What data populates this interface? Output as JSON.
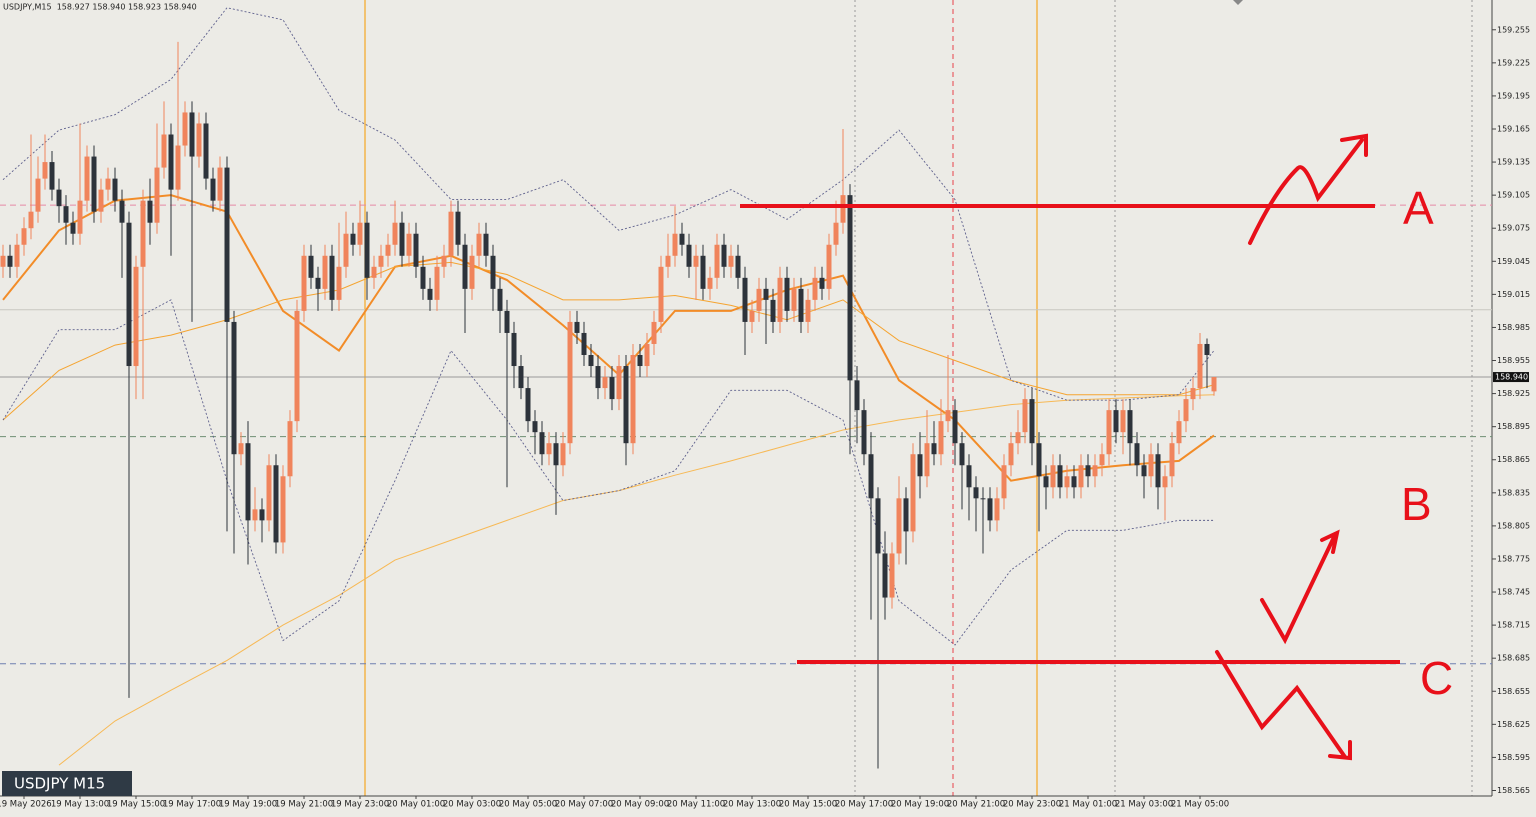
{
  "chart_data": {
    "type": "candlestick",
    "title": "USDJPY,M15  158.927 158.940 158.923 158.940",
    "watermark": "USDJPY M15",
    "categories": [
      null,
      null,
      null,
      "19 May 2026",
      null,
      null,
      null,
      null,
      null,
      null,
      null,
      "19 May 13:00",
      null,
      null,
      null,
      null,
      null,
      null,
      null,
      "19 May 15:00",
      null,
      null,
      null,
      null,
      null,
      null,
      null,
      "19 May 17:00",
      null,
      null,
      null,
      null,
      null,
      null,
      null,
      "19 May 19:00",
      null,
      null,
      null,
      null,
      null,
      null,
      null,
      "19 May 21:00",
      null,
      null,
      null,
      null,
      null,
      null,
      null,
      "19 May 23:00",
      null,
      null,
      null,
      null,
      null,
      null,
      null,
      "20 May 01:00",
      null,
      null,
      null,
      null,
      null,
      null,
      null,
      "20 May 03:00",
      null,
      null,
      null,
      null,
      null,
      null,
      null,
      "20 May 05:00",
      null,
      null,
      null,
      null,
      null,
      null,
      null,
      "20 May 07:00",
      null,
      null,
      null,
      null,
      null,
      null,
      null,
      "20 May 09:00",
      null,
      null,
      null,
      null,
      null,
      null,
      null,
      "20 May 11:00",
      null,
      null,
      null,
      null,
      null,
      null,
      null,
      "20 May 13:00",
      null,
      null,
      null,
      null,
      null,
      null,
      null,
      "20 May 15:00",
      null,
      null,
      null,
      null,
      null,
      null,
      null,
      "20 May 17:00",
      null,
      null,
      null,
      null,
      null,
      null,
      null,
      "20 May 19:00",
      null,
      null,
      null,
      null,
      null,
      null,
      null,
      "20 May 21:00",
      null,
      null,
      null,
      null,
      null,
      null,
      null,
      "20 May 23:00",
      null,
      null,
      null,
      null,
      null,
      null,
      null,
      "21 May 01:00",
      null,
      null,
      null,
      null,
      null,
      null,
      null,
      "21 May 03:00",
      null,
      null,
      null,
      null,
      null,
      null,
      null,
      "21 May 05:00",
      null,
      null
    ],
    "open": [
      159.04,
      159.05,
      159.04,
      159.06,
      159.075,
      159.09,
      159.12,
      159.135,
      159.11,
      159.095,
      159.08,
      159.07,
      159.1,
      159.14,
      159.09,
      159.11,
      159.12,
      159.1,
      159.08,
      158.95,
      159.04,
      159.1,
      159.08,
      159.13,
      159.16,
      159.11,
      159.15,
      159.18,
      159.14,
      159.17,
      159.12,
      159.1,
      159.13,
      158.99,
      158.87,
      158.88,
      158.81,
      158.82,
      158.81,
      158.86,
      158.79,
      158.85,
      158.9,
      159,
      159.05,
      159.03,
      159.02,
      159.05,
      159.01,
      159.04,
      159.07,
      159.06,
      159.08,
      159.03,
      159.04,
      159.05,
      159.06,
      159.08,
      159.05,
      159.07,
      159.04,
      159.02,
      159.01,
      159.04,
      159.05,
      159.09,
      159.06,
      159.02,
      159.05,
      159.07,
      159.05,
      159.02,
      159,
      158.98,
      158.95,
      158.93,
      158.9,
      158.89,
      158.87,
      158.88,
      158.86,
      158.88,
      158.99,
      158.98,
      158.96,
      158.95,
      158.93,
      158.94,
      158.92,
      158.95,
      158.88,
      158.96,
      158.95,
      158.97,
      158.99,
      159.04,
      159.05,
      159.07,
      159.06,
      159.04,
      159.05,
      159.02,
      159.03,
      159.06,
      159.04,
      159.05,
      159.03,
      158.99,
      159,
      159.02,
      159.01,
      158.99,
      159.03,
      159,
      159.02,
      158.99,
      159.01,
      159.03,
      159.02,
      159.06,
      159.08,
      159.105,
      158.937,
      158.91,
      158.87,
      158.83,
      158.78,
      158.74,
      158.78,
      158.83,
      158.8,
      158.87,
      158.85,
      158.88,
      158.87,
      158.9,
      158.91,
      158.88,
      158.86,
      158.84,
      158.83,
      158.83,
      158.81,
      158.83,
      158.86,
      158.88,
      158.89,
      158.92,
      158.88,
      158.85,
      158.84,
      158.86,
      158.84,
      158.85,
      158.84,
      158.86,
      158.85,
      158.86,
      158.87,
      158.91,
      158.89,
      158.91,
      158.88,
      158.86,
      158.85,
      158.87,
      158.84,
      158.85,
      158.88,
      158.9,
      158.92,
      158.93,
      158.97,
      158.927
    ],
    "high": [
      159.06,
      159.06,
      159.07,
      159.085,
      159.16,
      159.14,
      159.16,
      159.145,
      159.12,
      159.105,
      159.09,
      159.17,
      159.15,
      159.15,
      159.12,
      159.13,
      159.13,
      159.11,
      159.09,
      159.05,
      159.11,
      159.12,
      159.17,
      159.19,
      159.17,
      159.244,
      159.19,
      159.19,
      159.18,
      159.18,
      159.13,
      159.14,
      159.14,
      159,
      158.89,
      158.9,
      158.84,
      158.83,
      158.87,
      158.87,
      158.86,
      158.91,
      159.01,
      159.06,
      159.06,
      159.04,
      159.06,
      159.06,
      159.08,
      159.09,
      159.08,
      159.1,
      159.09,
      159.05,
      159.06,
      159.07,
      159.1,
      159.09,
      159.08,
      159.08,
      159.05,
      159.03,
      159.05,
      159.06,
      159.1,
      159.1,
      159.07,
      159.06,
      159.08,
      159.08,
      159.06,
      159.03,
      159.01,
      158.99,
      158.96,
      158.94,
      158.91,
      158.9,
      158.89,
      158.89,
      158.89,
      159,
      159,
      158.99,
      158.97,
      158.96,
      158.95,
      158.95,
      158.96,
      158.96,
      158.97,
      158.97,
      158.98,
      159,
      159.05,
      159.07,
      159.095,
      159.08,
      159.07,
      159.06,
      159.06,
      159.04,
      159.07,
      159.07,
      159.06,
      159.06,
      159.04,
      159.01,
      159.03,
      159.03,
      159.02,
      159.04,
      159.04,
      159.03,
      159.03,
      159.02,
      159.04,
      159.04,
      159.07,
      159.1,
      159.165,
      159.115,
      158.95,
      158.92,
      158.89,
      158.84,
      158.8,
      158.79,
      158.85,
      158.84,
      158.88,
      158.89,
      158.91,
      158.9,
      158.92,
      158.96,
      158.92,
      158.89,
      158.87,
      158.85,
      158.84,
      158.84,
      158.84,
      158.87,
      158.89,
      158.91,
      158.93,
      158.93,
      158.89,
      158.86,
      158.87,
      158.87,
      158.86,
      158.86,
      158.87,
      158.87,
      158.87,
      158.88,
      158.92,
      158.92,
      158.92,
      158.92,
      158.89,
      158.87,
      158.88,
      158.88,
      158.86,
      158.89,
      158.91,
      158.93,
      158.94,
      158.98,
      158.975,
      158.94
    ],
    "low": [
      159.03,
      159.03,
      159.03,
      159.05,
      159.065,
      159.08,
      159.11,
      159.1,
      159.08,
      159.06,
      159.06,
      159.06,
      159.09,
      159.08,
      159.08,
      159.1,
      159.09,
      159.03,
      158.649,
      158.92,
      158.92,
      159.06,
      159.07,
      159.12,
      159.05,
      159.1,
      159.14,
      158.99,
      159.13,
      159.11,
      159.09,
      159.09,
      158.8,
      158.78,
      158.86,
      158.77,
      158.8,
      158.79,
      158.8,
      158.78,
      158.78,
      158.84,
      158.89,
      158.99,
      159.02,
      159,
      159.01,
      159,
      159,
      159.03,
      159.05,
      159.05,
      159.01,
      159.02,
      159.03,
      159.04,
      159.05,
      159.04,
      159.04,
      159.03,
      159.01,
      159,
      159,
      159.03,
      159.04,
      159.05,
      158.98,
      159.01,
      159.04,
      159.04,
      159,
      158.98,
      158.84,
      158.93,
      158.92,
      158.89,
      158.87,
      158.86,
      158.86,
      158.815,
      158.85,
      158.87,
      158.97,
      158.95,
      158.94,
      158.92,
      158.92,
      158.91,
      158.91,
      158.86,
      158.87,
      158.94,
      158.94,
      158.96,
      158.98,
      159.03,
      159.04,
      159.05,
      159.03,
      159.01,
      159.01,
      159.01,
      159.02,
      159.03,
      159.03,
      159.02,
      158.96,
      158.98,
      158.99,
      158.97,
      158.98,
      158.98,
      158.99,
      158.99,
      158.98,
      158.98,
      159,
      159.01,
      159.01,
      159.05,
      159.07,
      158.87,
      158.88,
      158.86,
      158.72,
      158.585,
      158.72,
      158.73,
      158.77,
      158.77,
      158.79,
      158.83,
      158.84,
      158.86,
      158.86,
      158.89,
      158.86,
      158.82,
      158.81,
      158.8,
      158.78,
      158.8,
      158.8,
      158.82,
      158.85,
      158.87,
      158.88,
      158.86,
      158.8,
      158.82,
      158.83,
      158.83,
      158.83,
      158.83,
      158.83,
      158.84,
      158.84,
      158.85,
      158.86,
      158.88,
      158.87,
      158.86,
      158.85,
      158.83,
      158.84,
      158.82,
      158.81,
      158.84,
      158.87,
      158.89,
      158.91,
      158.92,
      158.93,
      158.923
    ],
    "close": [
      159.05,
      159.04,
      159.06,
      159.075,
      159.09,
      159.12,
      159.135,
      159.11,
      159.095,
      159.08,
      159.07,
      159.1,
      159.14,
      159.09,
      159.11,
      159.12,
      159.1,
      159.08,
      158.95,
      159.04,
      159.1,
      159.08,
      159.13,
      159.16,
      159.11,
      159.15,
      159.18,
      159.14,
      159.17,
      159.12,
      159.1,
      159.13,
      158.99,
      158.87,
      158.88,
      158.81,
      158.82,
      158.81,
      158.86,
      158.79,
      158.85,
      158.9,
      159,
      159.05,
      159.03,
      159.02,
      159.05,
      159.01,
      159.04,
      159.07,
      159.06,
      159.08,
      159.03,
      159.04,
      159.05,
      159.06,
      159.08,
      159.05,
      159.07,
      159.04,
      159.02,
      159.01,
      159.04,
      159.05,
      159.09,
      159.06,
      159.02,
      159.05,
      159.07,
      159.05,
      159.02,
      159,
      158.98,
      158.95,
      158.93,
      158.9,
      158.89,
      158.87,
      158.88,
      158.86,
      158.88,
      158.99,
      158.98,
      158.96,
      158.95,
      158.93,
      158.94,
      158.92,
      158.95,
      158.88,
      158.96,
      158.95,
      158.97,
      158.99,
      159.04,
      159.05,
      159.07,
      159.06,
      159.04,
      159.05,
      159.02,
      159.03,
      159.06,
      159.04,
      159.05,
      159.03,
      158.99,
      159,
      159.02,
      159.01,
      158.99,
      159.03,
      159,
      159.02,
      158.99,
      159.01,
      159.03,
      159.02,
      159.06,
      159.08,
      159.105,
      158.937,
      158.91,
      158.87,
      158.83,
      158.78,
      158.74,
      158.78,
      158.83,
      158.8,
      158.87,
      158.85,
      158.88,
      158.87,
      158.9,
      158.91,
      158.88,
      158.86,
      158.84,
      158.83,
      158.83,
      158.81,
      158.83,
      158.86,
      158.88,
      158.89,
      158.92,
      158.88,
      158.85,
      158.84,
      158.86,
      158.84,
      158.85,
      158.84,
      158.86,
      158.85,
      158.86,
      158.87,
      158.91,
      158.89,
      158.91,
      158.88,
      158.86,
      158.85,
      158.87,
      158.84,
      158.85,
      158.88,
      158.9,
      158.92,
      158.93,
      158.97,
      158.96,
      158.94
    ],
    "up_color": "#f0845c",
    "down_color": "#2d333b",
    "indicator_x": [
      0,
      8,
      16,
      24,
      32,
      40,
      48,
      56,
      64,
      72,
      80,
      88,
      96,
      104,
      112,
      120,
      128,
      136,
      144,
      152,
      160,
      168,
      173
    ],
    "indicators": [
      {
        "style": "bold",
        "color": "#f28c28",
        "values": [
          159.01,
          159.073,
          159.1,
          159.105,
          159.09,
          159.0,
          158.964,
          159.04,
          159.05,
          159.028,
          158.987,
          158.942,
          159.0,
          159.0,
          159.019,
          159.032,
          158.937,
          158.901,
          158.846,
          158.855,
          158.86,
          158.864,
          158.887
        ]
      },
      {
        "style": "thin",
        "color": "#f5a430",
        "values": [
          158.901,
          158.946,
          158.969,
          158.978,
          158.992,
          159.01,
          159.019,
          159.04,
          159.044,
          159.033,
          159.01,
          159.01,
          159.014,
          159.005,
          158.992,
          159.01,
          158.973,
          158.955,
          158.937,
          158.924,
          158.924,
          158.924,
          158.933
        ]
      },
      {
        "style": "thin",
        "color": "#f7b955",
        "values": [
          null,
          158.588,
          158.628,
          158.656,
          158.683,
          158.715,
          158.742,
          158.774,
          158.792,
          158.81,
          158.828,
          158.837,
          158.851,
          158.864,
          158.878,
          158.892,
          158.901,
          158.908,
          158.915,
          158.919,
          158.921,
          158.923,
          158.924
        ]
      },
      {
        "style": "dotted",
        "color": "#5d5f8c",
        "values": [
          159.119,
          159.164,
          159.178,
          159.21,
          159.275,
          159.264,
          159.182,
          159.155,
          159.101,
          159.101,
          159.119,
          159.073,
          159.087,
          159.11,
          159.083,
          159.119,
          159.164,
          159.101,
          158.937,
          158.919,
          158.919,
          158.924,
          158.964
        ]
      },
      {
        "style": "dotted",
        "color": "#5d5f8c",
        "values": [
          158.901,
          158.983,
          158.983,
          159.01,
          158.846,
          158.701,
          158.737,
          158.846,
          158.964,
          158.901,
          158.828,
          158.837,
          158.855,
          158.928,
          158.928,
          158.901,
          158.737,
          158.697,
          158.765,
          158.801,
          158.801,
          158.81,
          158.81
        ]
      }
    ],
    "levels": [
      {
        "value": 159.096,
        "color": "#e58aa6",
        "style": "dashed"
      },
      {
        "value": 159.001,
        "color": "#c8c8c0",
        "style": "solid"
      },
      {
        "value": 158.886,
        "color": "#6f8f73",
        "style": "dashed"
      },
      {
        "value": 158.68,
        "color": "#6f7fb0",
        "style": "dashed"
      }
    ],
    "current_price": {
      "value": 158.94,
      "label": "158.940"
    },
    "ylim": [
      158.56,
      159.282
    ],
    "yticks": [
      159.255,
      159.225,
      159.195,
      159.165,
      159.135,
      159.105,
      159.075,
      159.045,
      159.015,
      158.985,
      158.955,
      158.925,
      158.895,
      158.865,
      158.835,
      158.805,
      158.775,
      158.745,
      158.715,
      158.685,
      158.655,
      158.625,
      158.595,
      158.565
    ],
    "annotations": [
      "A",
      "B",
      "C"
    ]
  }
}
